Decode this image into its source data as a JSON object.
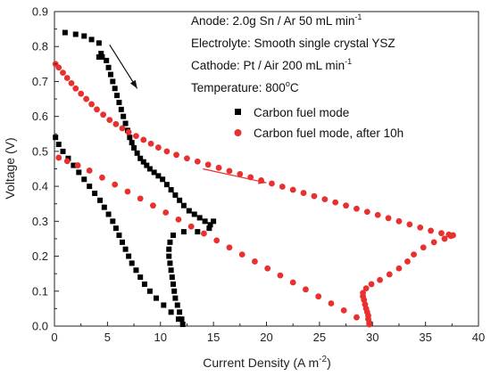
{
  "chart_data": {
    "type": "scatter",
    "xlabel": "Current Density (A m",
    "xlabel_sup": "-2",
    "xlabel_close": ")",
    "ylabel": "Voltage (V)",
    "xlim": [
      0,
      40
    ],
    "ylim": [
      0,
      0.9
    ],
    "xticks": [
      "0",
      "5",
      "10",
      "15",
      "20",
      "25",
      "30",
      "35",
      "40"
    ],
    "yticks": [
      "0.0",
      "0.1",
      "0.2",
      "0.3",
      "0.4",
      "0.5",
      "0.6",
      "0.7",
      "0.8",
      "0.9"
    ],
    "grid": false,
    "legend_position": "right",
    "annotations": {
      "anode": "Anode: 2.0g Sn / Ar 50 mL min",
      "anode_sup": "-1",
      "electrolyte": "Electrolyte: Smooth single crystal YSZ",
      "cathode": "Cathode: Pt / Air 200 mL min",
      "cathode_sup": "-1",
      "temperature": "Temperature: 800",
      "temperature_sup": "o",
      "temperature_unit": "C"
    },
    "arrows": [
      {
        "from": [
          5.2,
          0.805
        ],
        "to": [
          7.8,
          0.68
        ],
        "color": "#111111"
      },
      {
        "from": [
          14,
          0.45
        ],
        "to": [
          20,
          0.41
        ],
        "color": "#e8302f"
      }
    ],
    "series": [
      {
        "name": "Carbon fuel mode",
        "color": "#000000",
        "marker": "square",
        "x": [
          1,
          2,
          2.8,
          3.5,
          4.2,
          4.4,
          4.2,
          4.5,
          4.9,
          5.1,
          5.3,
          5.5,
          5.7,
          5.9,
          6.1,
          6.3,
          6.5,
          6.7,
          6.9,
          7.1,
          7.3,
          7.5,
          7.8,
          8.1,
          8.4,
          8.7,
          9.0,
          9.4,
          9.8,
          10.2,
          10.6,
          11.0,
          11.4,
          11.8,
          12.2,
          12.7,
          13.2,
          13.7,
          14.2,
          14.7,
          15.0,
          14.6,
          13.5,
          12.2,
          11.2,
          10.9,
          10.8,
          10.8,
          10.9,
          11.0,
          11.1,
          11.2,
          11.3,
          11.4,
          11.6,
          11.8,
          12.0,
          12.1,
          11.7,
          11.0,
          10.3,
          9.6,
          9.0,
          8.5,
          8.1,
          7.7,
          7.3,
          7.0,
          6.7,
          6.4,
          6.1,
          5.8,
          5.5,
          5.1,
          4.7,
          4.3,
          3.8,
          3.3,
          2.8,
          2.3,
          1.8,
          1.3,
          0.8,
          0.4,
          0.1
        ],
        "y": [
          0.84,
          0.835,
          0.83,
          0.82,
          0.81,
          0.78,
          0.77,
          0.77,
          0.76,
          0.74,
          0.72,
          0.7,
          0.68,
          0.66,
          0.64,
          0.62,
          0.6,
          0.58,
          0.56,
          0.54,
          0.525,
          0.51,
          0.495,
          0.48,
          0.47,
          0.46,
          0.45,
          0.44,
          0.43,
          0.42,
          0.405,
          0.39,
          0.375,
          0.36,
          0.345,
          0.33,
          0.32,
          0.31,
          0.3,
          0.29,
          0.3,
          0.28,
          0.27,
          0.27,
          0.26,
          0.24,
          0.22,
          0.2,
          0.18,
          0.16,
          0.14,
          0.12,
          0.1,
          0.08,
          0.06,
          0.04,
          0.02,
          0.005,
          0.02,
          0.04,
          0.06,
          0.08,
          0.1,
          0.12,
          0.14,
          0.16,
          0.18,
          0.2,
          0.22,
          0.24,
          0.26,
          0.28,
          0.3,
          0.32,
          0.34,
          0.36,
          0.38,
          0.4,
          0.42,
          0.44,
          0.46,
          0.48,
          0.5,
          0.52,
          0.54
        ]
      },
      {
        "name": "Carbon fuel mode, after 10h",
        "color": "#e8302f",
        "marker": "circle",
        "x": [
          0.1,
          0.4,
          0.8,
          1.2,
          1.6,
          2.0,
          2.5,
          3.0,
          3.5,
          4.0,
          4.6,
          5.2,
          5.8,
          6.4,
          7.0,
          7.7,
          8.4,
          9.1,
          9.8,
          10.6,
          11.5,
          12.5,
          13.5,
          14.5,
          15.5,
          16.5,
          17.5,
          18.5,
          19.5,
          20.5,
          21.5,
          22.5,
          23.5,
          24.5,
          25.5,
          26.5,
          27.5,
          28.5,
          29.5,
          30.5,
          31.5,
          32.5,
          33.5,
          34.5,
          35.5,
          36.5,
          37.2,
          37.6,
          37.4,
          36.8,
          35.8,
          34.8,
          33.9,
          33.3,
          32.5,
          31.6,
          30.7,
          29.9,
          29.4,
          29.1,
          29.1,
          29.2,
          29.3,
          29.4,
          29.5,
          29.6,
          29.6,
          29.7,
          29.7,
          28.5,
          27.3,
          26.1,
          24.9,
          23.7,
          22.5,
          21.3,
          20.1,
          18.9,
          17.7,
          16.5,
          15.3,
          14.1,
          12.9,
          11.7,
          10.5,
          9.3,
          8.1,
          6.9,
          5.7,
          4.5,
          3.3,
          2.2,
          1.2,
          0.4
        ],
        "y": [
          0.75,
          0.74,
          0.725,
          0.71,
          0.695,
          0.68,
          0.665,
          0.65,
          0.635,
          0.62,
          0.605,
          0.59,
          0.578,
          0.566,
          0.555,
          0.544,
          0.533,
          0.522,
          0.511,
          0.5,
          0.49,
          0.48,
          0.471,
          0.462,
          0.453,
          0.444,
          0.435,
          0.426,
          0.417,
          0.408,
          0.399,
          0.39,
          0.381,
          0.372,
          0.363,
          0.354,
          0.345,
          0.336,
          0.327,
          0.318,
          0.309,
          0.3,
          0.291,
          0.282,
          0.273,
          0.266,
          0.262,
          0.26,
          0.258,
          0.25,
          0.24,
          0.225,
          0.205,
          0.185,
          0.165,
          0.148,
          0.132,
          0.12,
          0.108,
          0.095,
          0.085,
          0.075,
          0.062,
          0.05,
          0.04,
          0.03,
          0.02,
          0.01,
          0.005,
          0.025,
          0.045,
          0.065,
          0.085,
          0.105,
          0.125,
          0.145,
          0.165,
          0.185,
          0.205,
          0.225,
          0.245,
          0.265,
          0.285,
          0.305,
          0.325,
          0.345,
          0.365,
          0.385,
          0.405,
          0.425,
          0.445,
          0.46,
          0.472,
          0.482
        ]
      }
    ]
  }
}
